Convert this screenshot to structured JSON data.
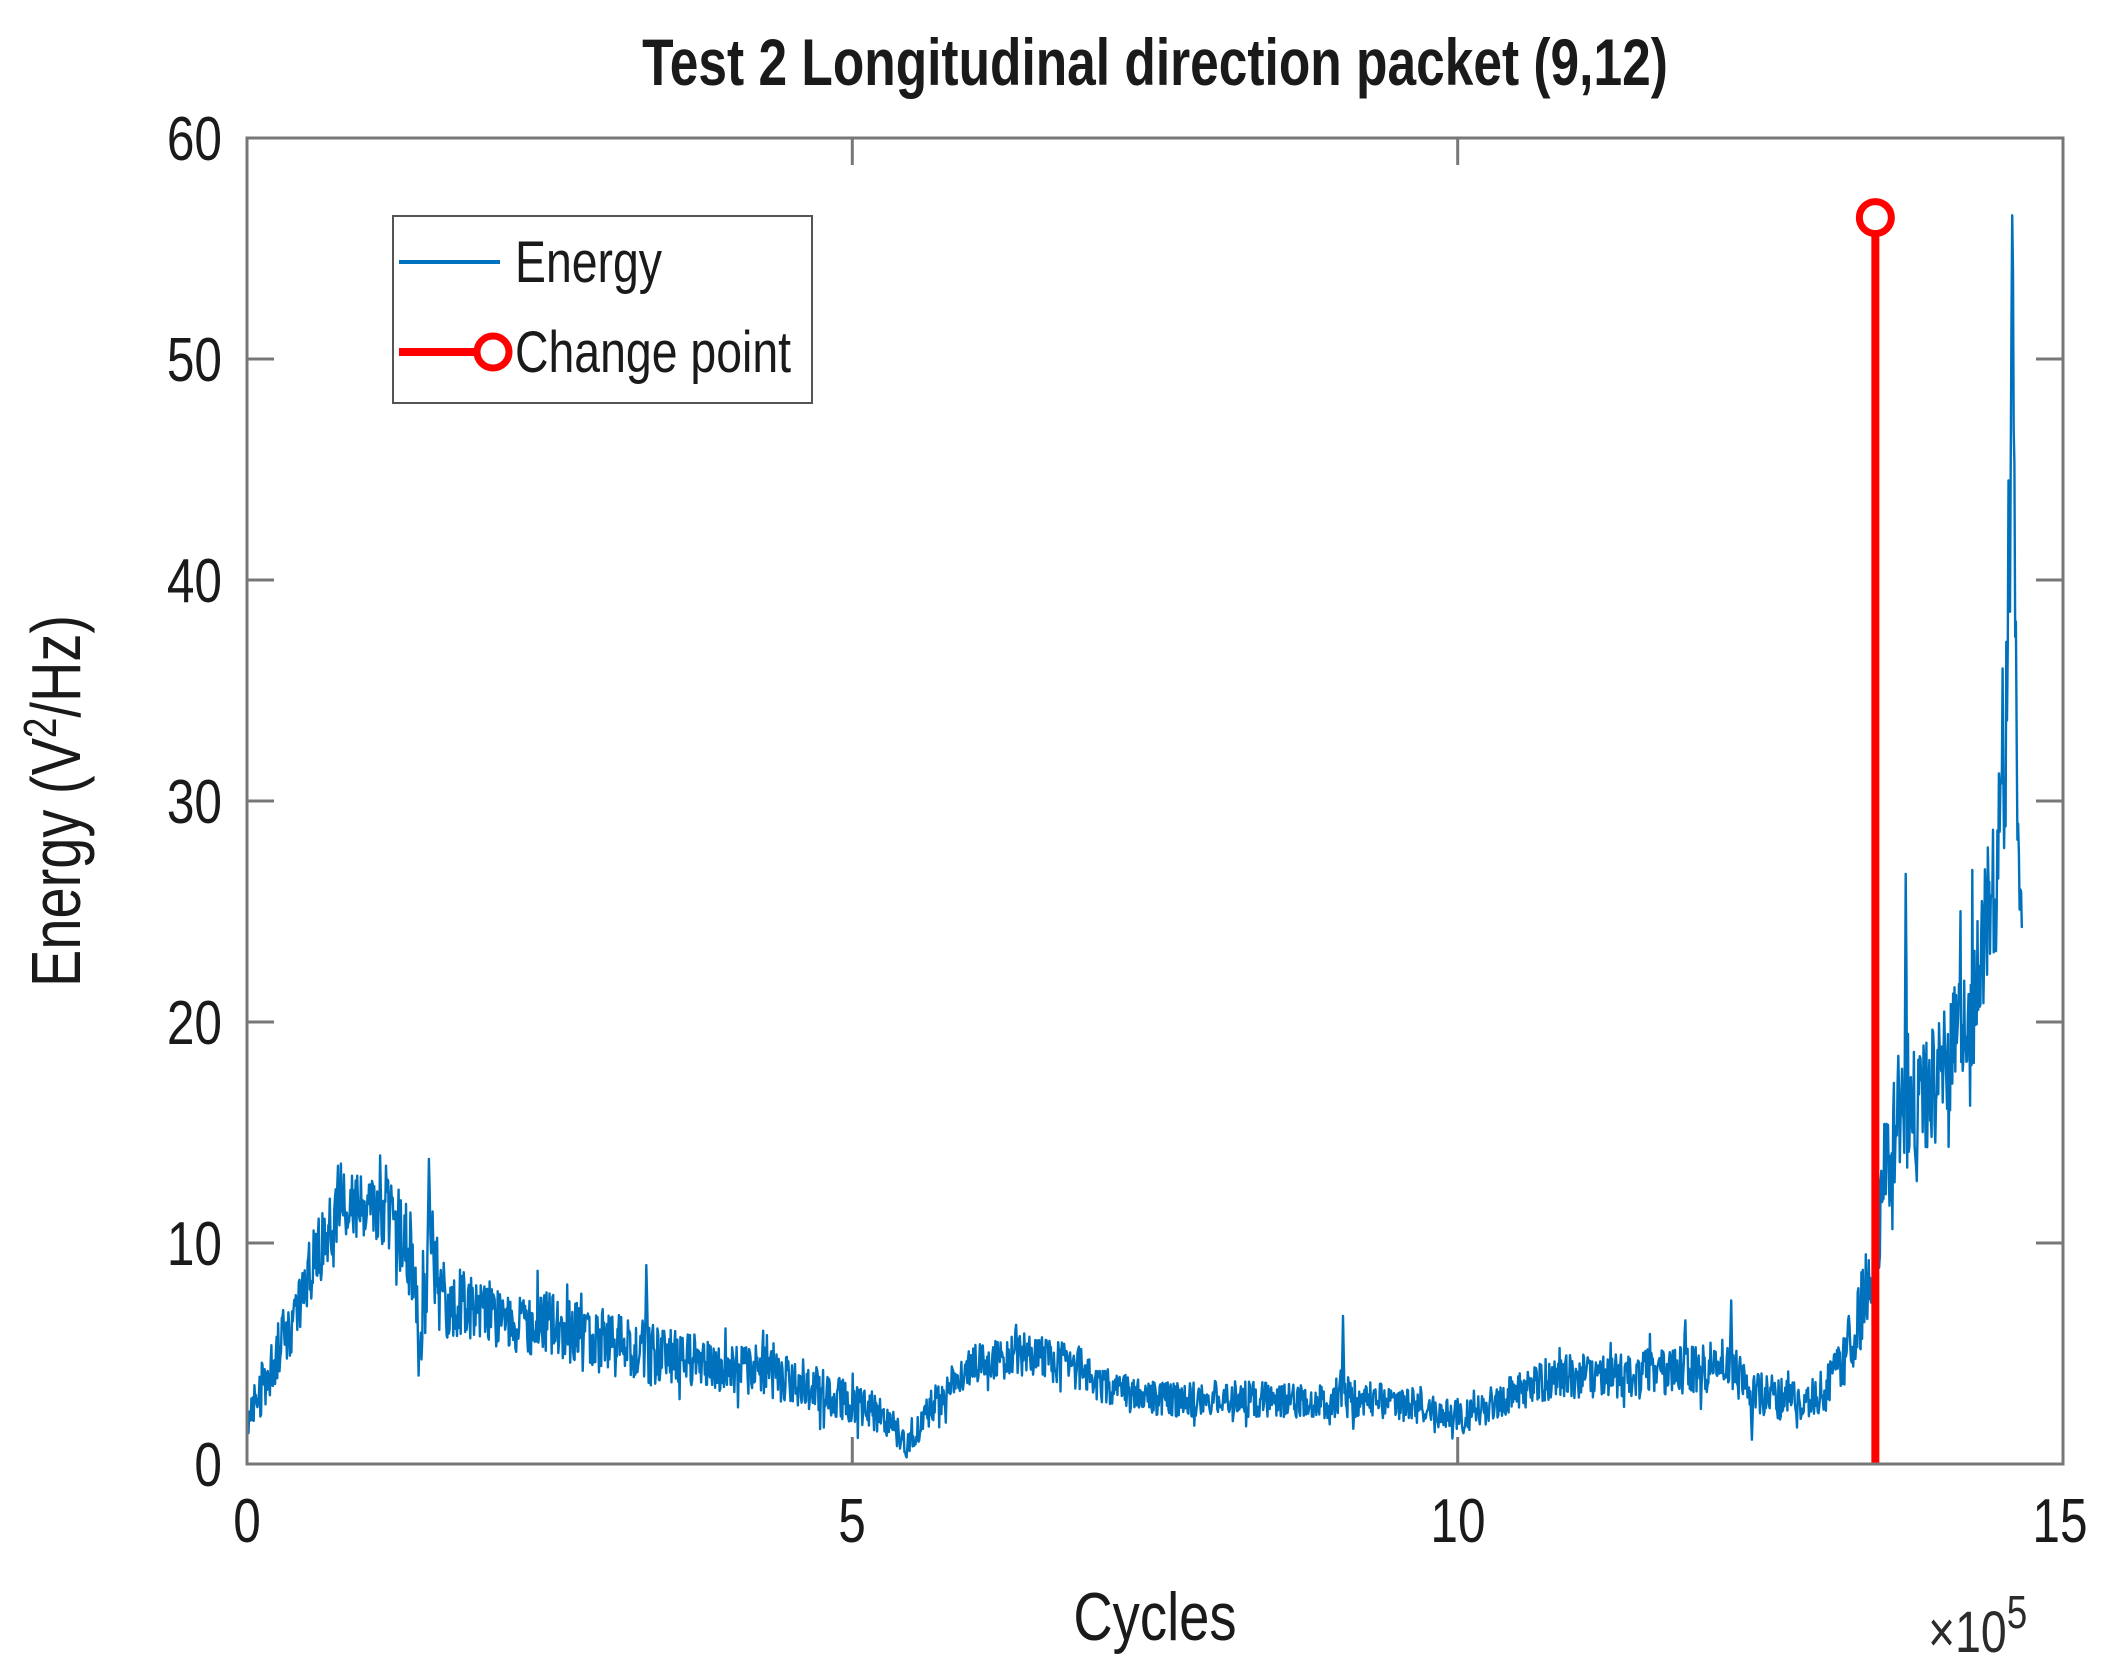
{
  "chart_data": {
    "type": "line",
    "title": "Test 2 Longitudinal direction packet (9,12)",
    "xlabel": "Cycles",
    "ylabel": "Energy (V^2/Hz)",
    "ylabel_pre": "Energy (V",
    "ylabel_sup": "2",
    "ylabel_post": "/Hz)",
    "x_offset_base": "×10",
    "x_offset_exp": "5",
    "x_units": "cycles, ×10^5",
    "xlim": [
      0,
      15
    ],
    "ylim": [
      0,
      60
    ],
    "xticks": [
      0,
      5,
      10,
      15
    ],
    "yticks": [
      0,
      10,
      20,
      30,
      40,
      50,
      60
    ],
    "xticklabels": [
      "0",
      "5",
      "10",
      "15"
    ],
    "yticklabels": [
      "0",
      "10",
      "20",
      "30",
      "40",
      "50",
      "60"
    ],
    "grid": false,
    "legend_position": "upper-left",
    "colors": {
      "energy": "#0072BD",
      "change_point": "#FF0000",
      "axis": "#777777",
      "text": "#1a1a1a",
      "plot_bg": "#ffffff"
    },
    "series": [
      {
        "name": "Energy",
        "type": "noisy-line",
        "x_scale": "1e5 cycles",
        "x_end": 14.66,
        "end_value": 24.3,
        "anchors_x": [
          0,
          0.1,
          0.25,
          0.45,
          0.6,
          0.75,
          0.95,
          1.1,
          1.25,
          1.35,
          1.42,
          1.5,
          1.6,
          1.8,
          2.0,
          2.2,
          2.5,
          2.8,
          3.1,
          3.3,
          3.6,
          3.9,
          4.2,
          4.5,
          4.8,
          5.1,
          5.3,
          5.45,
          5.6,
          5.8,
          6.0,
          6.3,
          6.6,
          6.9,
          7.1,
          7.4,
          7.7,
          8.0,
          8.4,
          8.8,
          9.05,
          9.3,
          9.6,
          9.9,
          10.1,
          10.4,
          10.7,
          11.0,
          11.3,
          11.6,
          11.9,
          12.2,
          12.45,
          12.7,
          12.9,
          13.05,
          13.2,
          13.3,
          13.4,
          13.5,
          13.6,
          13.7,
          13.85,
          14.0,
          14.15,
          14.3,
          14.42,
          14.5,
          14.55,
          14.58,
          14.6,
          14.63,
          14.66
        ],
        "anchors_mean": [
          2.0,
          3.2,
          5.0,
          7.5,
          10.0,
          11.5,
          11.8,
          11.5,
          11.0,
          9.0,
          6.0,
          9.5,
          7.5,
          7.2,
          6.8,
          6.5,
          6.3,
          5.8,
          5.5,
          5.0,
          4.8,
          4.5,
          4.2,
          3.8,
          3.2,
          2.6,
          2.0,
          0.8,
          2.2,
          3.5,
          4.5,
          5.0,
          4.8,
          4.3,
          3.5,
          3.0,
          2.9,
          3.0,
          2.9,
          2.8,
          3.0,
          2.9,
          2.7,
          2.3,
          2.2,
          3.0,
          3.8,
          4.0,
          4.0,
          4.2,
          4.3,
          4.5,
          3.2,
          3.0,
          3.0,
          3.5,
          4.5,
          6.5,
          8.5,
          12.5,
          15.0,
          16.0,
          16.5,
          18.0,
          20.0,
          22.0,
          26.0,
          30.5,
          36.0,
          48.0,
          40.0,
          28.0,
          24.3
        ],
        "anchors_amp": [
          1.0,
          1.2,
          1.3,
          1.5,
          1.5,
          1.6,
          1.5,
          1.5,
          1.8,
          2.5,
          2.0,
          3.0,
          1.8,
          1.6,
          1.5,
          1.4,
          1.5,
          1.4,
          1.3,
          1.5,
          1.2,
          1.2,
          1.2,
          1.2,
          1.0,
          0.9,
          0.8,
          0.5,
          0.8,
          0.9,
          0.9,
          1.0,
          1.0,
          1.0,
          0.9,
          0.8,
          0.8,
          0.8,
          0.8,
          0.8,
          0.9,
          0.8,
          0.8,
          0.7,
          0.7,
          0.9,
          1.0,
          1.0,
          1.0,
          1.1,
          1.1,
          1.2,
          1.1,
          1.0,
          1.0,
          1.1,
          1.3,
          1.8,
          2.5,
          3.0,
          3.0,
          3.5,
          3.0,
          3.0,
          3.0,
          3.5,
          4.0,
          5.0,
          6.0,
          8.0,
          6.0,
          3.0,
          1.0
        ],
        "spikes": [
          [
            0.75,
            13.5
          ],
          [
            1.15,
            13.5
          ],
          [
            1.5,
            13.8
          ],
          [
            3.3,
            9.0
          ],
          [
            6.35,
            6.3
          ],
          [
            9.05,
            6.7
          ],
          [
            11.88,
            6.5
          ],
          [
            12.26,
            7.4
          ],
          [
            13.23,
            6.7
          ],
          [
            13.7,
            26.7
          ],
          [
            14.5,
            36.0
          ],
          [
            14.55,
            44.5
          ],
          [
            14.58,
            56.5
          ]
        ],
        "dips": [
          [
            1.42,
            4.0
          ],
          [
            5.45,
            0.3
          ],
          [
            10.05,
            1.4
          ],
          [
            12.43,
            1.1
          ]
        ]
      },
      {
        "name": "Change point",
        "type": "vline",
        "x": 13.45,
        "y_bottom": 0,
        "y_top": 56.4,
        "marker": "open-circle"
      }
    ]
  }
}
